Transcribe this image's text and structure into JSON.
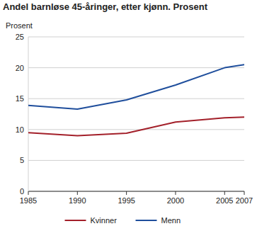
{
  "chart_data": {
    "type": "line",
    "title": "Andel barnløse 45-åringer, etter kjønn. Prosent",
    "y_label": "Prosent",
    "x": [
      1985,
      1990,
      1995,
      2000,
      2005,
      2007
    ],
    "series": [
      {
        "name": "Kvinner",
        "color": "#a3202a",
        "values": [
          9.5,
          9.0,
          9.4,
          11.2,
          11.9,
          12.0
        ]
      },
      {
        "name": "Menn",
        "color": "#1f4e9c",
        "values": [
          13.9,
          13.3,
          14.8,
          17.2,
          20.0,
          20.5
        ]
      }
    ],
    "xlim": [
      1985,
      2007
    ],
    "xticks": [
      1985,
      1990,
      1995,
      2000,
      2005,
      2007
    ],
    "ylim": [
      0,
      25
    ],
    "yticks": [
      0,
      5,
      10,
      15,
      20,
      25
    ],
    "grid": true,
    "legend": "bottom"
  }
}
